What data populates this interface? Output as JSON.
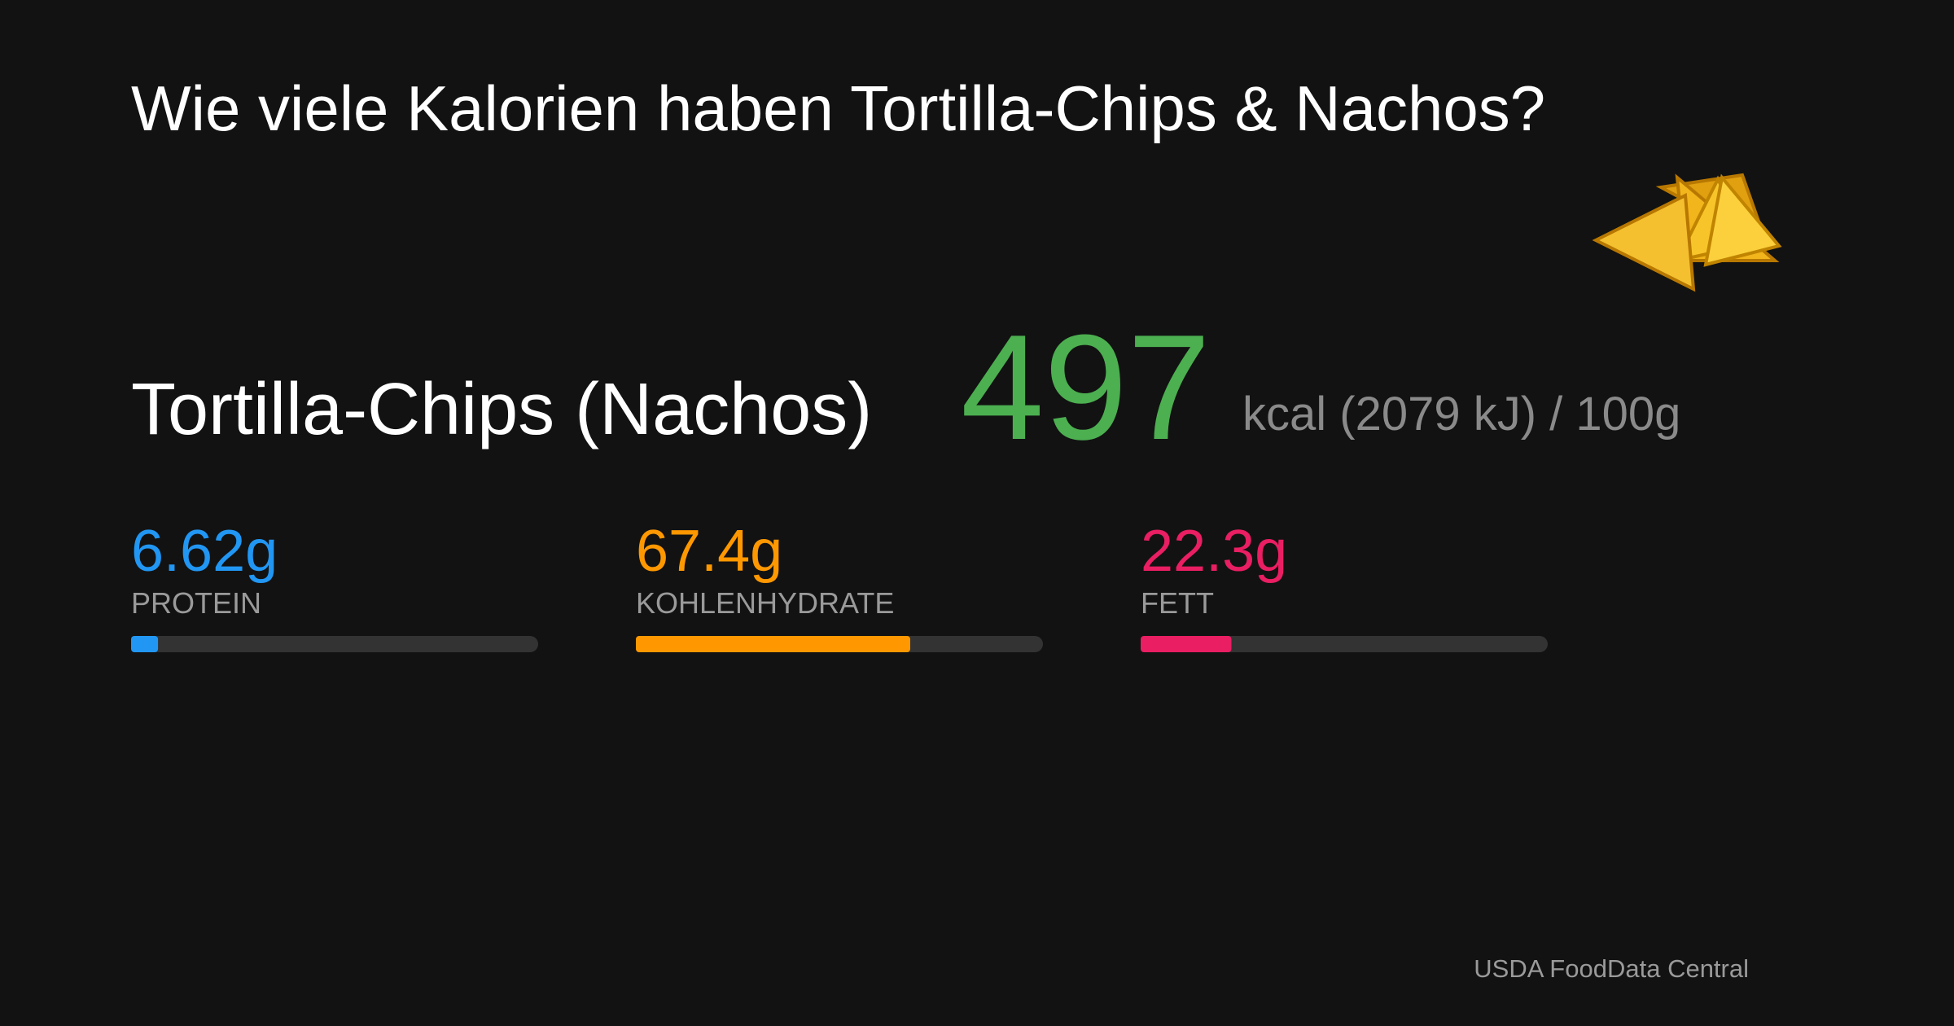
{
  "title": "Wie viele Kalorien haben Tortilla-Chips & Nachos?",
  "food": {
    "name": "Tortilla-Chips (Nachos)",
    "kcal": 497,
    "unit": "kcal (2079 kJ) / 100g",
    "kcal_color": "#4caf50"
  },
  "nutrients": [
    {
      "value": 6.62,
      "value_label": "6.62g",
      "name": "PROTEIN",
      "color": "#2196f3"
    },
    {
      "value": 67.4,
      "value_label": "67.4g",
      "name": "KOHLENHYDRATE",
      "color": "#ff9800"
    },
    {
      "value": 22.3,
      "value_label": "22.3g",
      "name": "FETT",
      "color": "#e91e63"
    }
  ],
  "xlim": [
    0,
    100
  ],
  "source": "USDA FoodData Central"
}
